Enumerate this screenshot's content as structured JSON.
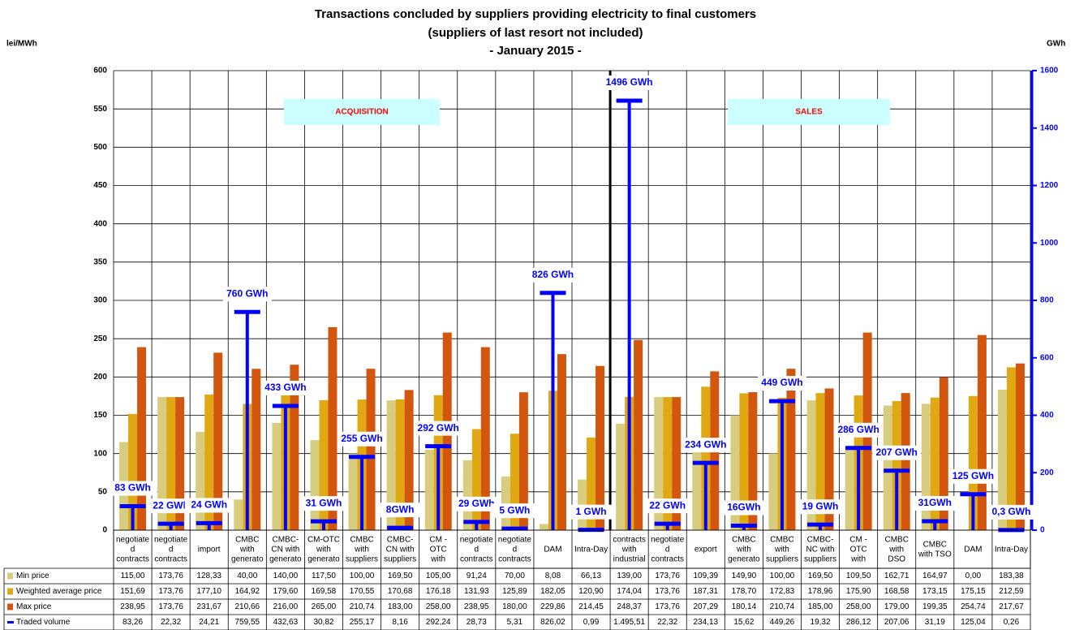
{
  "chart_data": {
    "type": "bar_line_table",
    "title": "Transactions concluded by suppliers providing electricity to final customers",
    "subtitle": "(suppliers of last resort not included)",
    "period": "- January 2015 -",
    "y_label": "lei/MWh",
    "y2_label": "GWh",
    "annotations": [
      "ACQUISITION",
      "SALES"
    ],
    "categories": [
      "negotiate\nd\ncontracts",
      "negotiate\nd\ncontracts",
      "import",
      "CMBC\nwith\ngenerato",
      "CMBC-\nCN with\ngenerato",
      "CM-OTC\nwith\ngenerato",
      "CMBC\nwith\nsuppliers",
      "CMBC-\nCN with\nsuppliers",
      "CM -\nOTC\nwith",
      "negotiate\nd\ncontracts",
      "negotiate\nd\ncontracts",
      "DAM",
      "Intra-Day",
      "contracts\nwith\nindustrial",
      "negotiate\nd\ncontracts",
      "export",
      "CMBC\nwith\ngenerato",
      "CMBC\nwith\nsuppliers",
      "CMBC-\nNC with\nsuppliers",
      "CM -\nOTC\nwith",
      "CMBC\nwith\nDSO",
      "CMBC\nwith TSO",
      "DAM",
      "Intra-Day"
    ],
    "series": [
      {
        "name": "Min price",
        "color": "#d8cc7e",
        "values": [
          115,
          173.76,
          128.33,
          40,
          140,
          117.5,
          100,
          169.5,
          105,
          91.24,
          70,
          8.08,
          66.13,
          139,
          173.76,
          109.39,
          149.9,
          100,
          169.5,
          109.5,
          162.71,
          164.97,
          0,
          183.38
        ],
        "value_labels": [
          "115,00",
          "173,76",
          "128,33",
          "40,00",
          "140,00",
          "117,50",
          "100,00",
          "169,50",
          "105,00",
          "91,24",
          "70,00",
          "8,08",
          "66,13",
          "139,00",
          "173,76",
          "109,39",
          "149,90",
          "100,00",
          "169,50",
          "109,50",
          "162,71",
          "164,97",
          "0,00",
          "183,38"
        ]
      },
      {
        "name": "Weighted average price",
        "color": "#e0a812",
        "values": [
          151.69,
          173.76,
          177.1,
          164.92,
          179.6,
          169.58,
          170.55,
          170.68,
          176.18,
          131.93,
          125.89,
          182.05,
          120.9,
          174.04,
          173.76,
          187.31,
          178.7,
          172.83,
          178.96,
          175.9,
          168.58,
          173.15,
          175.15,
          212.59
        ],
        "value_labels": [
          "151,69",
          "173,76",
          "177,10",
          "164,92",
          "179,60",
          "169,58",
          "170,55",
          "170,68",
          "176,18",
          "131,93",
          "125,89",
          "182,05",
          "120,90",
          "174,04",
          "173,76",
          "187,31",
          "178,70",
          "172,83",
          "178,96",
          "175,90",
          "168,58",
          "173,15",
          "175,15",
          "212,59"
        ]
      },
      {
        "name": "Max price",
        "color": "#d2560e",
        "values": [
          238.95,
          173.76,
          231.67,
          210.66,
          216,
          265,
          210.74,
          183,
          258,
          238.95,
          180,
          229.86,
          214.45,
          248.37,
          173.76,
          207.29,
          180.14,
          210.74,
          185,
          258,
          179,
          199.35,
          254.74,
          217.67
        ],
        "value_labels": [
          "238,95",
          "173,76",
          "231,67",
          "210,66",
          "216,00",
          "265,00",
          "210,74",
          "183,00",
          "258,00",
          "238,95",
          "180,00",
          "229,86",
          "214,45",
          "248,37",
          "173,76",
          "207,29",
          "180,14",
          "210,74",
          "185,00",
          "258,00",
          "179,00",
          "199,35",
          "254,74",
          "217,67"
        ]
      },
      {
        "name": "Traded volume",
        "color": "#0000ff",
        "axis": "y2",
        "values": [
          83.26,
          22.32,
          24.21,
          759.55,
          432.63,
          30.82,
          255.17,
          8.16,
          292.24,
          28.73,
          5.31,
          826.02,
          0.99,
          1495.51,
          22.32,
          234.13,
          15.62,
          449.26,
          19.32,
          286.12,
          207.06,
          31.19,
          125.04,
          0.26
        ],
        "value_labels": [
          "83,26",
          "22,32",
          "24,21",
          "759,55",
          "432,63",
          "30,82",
          "255,17",
          "8,16",
          "292,24",
          "28,73",
          "5,31",
          "826,02",
          "0,99",
          "1.495,51",
          "22,32",
          "234,13",
          "15,62",
          "449,26",
          "19,32",
          "286,12",
          "207,06",
          "31,19",
          "125,04",
          "0,26"
        ],
        "point_labels": [
          "83 GWh",
          "22 GWh",
          "24 GWh",
          "760 GWh",
          "433 GWh",
          "31 GWh",
          "255 GWh",
          "8GWh",
          "292 GWh",
          "29 GWh",
          "5 GWh",
          "826 GWh",
          "1 GWh",
          "1496 GWh",
          "22 GWh",
          "234 GWh",
          "16GWh",
          "449 GWh",
          "19 GWh",
          "286 GWh",
          "207 GWh",
          "31GWh",
          "125 GWh",
          "0,3 GWh"
        ]
      }
    ],
    "ylim": [
      0,
      600
    ],
    "yticks": [
      0,
      50,
      100,
      150,
      200,
      250,
      300,
      350,
      400,
      450,
      500,
      550,
      600
    ],
    "y2lim": [
      0,
      1600
    ],
    "y2ticks": [
      0,
      200,
      400,
      600,
      800,
      1000,
      1200,
      1400,
      1600
    ],
    "grid": true
  }
}
